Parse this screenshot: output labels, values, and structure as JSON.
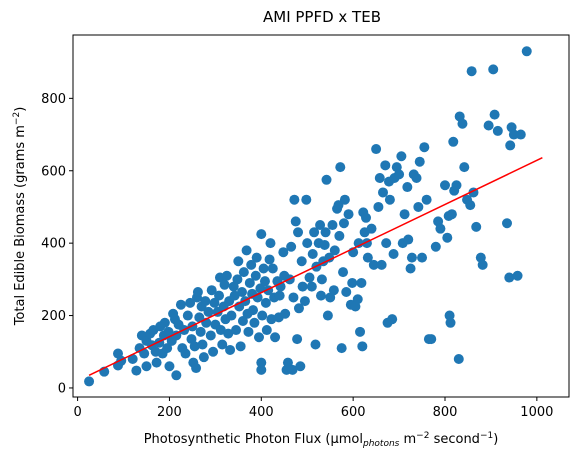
{
  "chart_data": {
    "type": "scatter",
    "title": "AMI PPFD x TEB",
    "xlabel": {
      "prefix": "Photosynthetic Photon Flux (μmol",
      "sub": "photons",
      "mid": " m",
      "sup1": "−2",
      "mid2": " second",
      "sup2": "−1",
      "suffix": ")"
    },
    "ylabel": {
      "prefix": "Total Edible Biomass (grams m",
      "sup": "−2",
      "suffix": ")"
    },
    "xlim": [
      -10,
      1070
    ],
    "ylim": [
      -25,
      975
    ],
    "xticks": [
      0,
      200,
      400,
      600,
      800,
      1000
    ],
    "yticks": [
      0,
      200,
      400,
      600,
      800
    ],
    "grid": false,
    "point_color": "#1f77b4",
    "line_color": "#ff0000",
    "fit_line": {
      "x": [
        25,
        1012
      ],
      "y": [
        35,
        636
      ]
    },
    "points": [
      [
        25,
        18
      ],
      [
        58,
        45
      ],
      [
        88,
        95
      ],
      [
        88,
        62
      ],
      [
        95,
        75
      ],
      [
        120,
        80
      ],
      [
        128,
        48
      ],
      [
        135,
        110
      ],
      [
        140,
        145
      ],
      [
        145,
        95
      ],
      [
        150,
        60
      ],
      [
        150,
        130
      ],
      [
        158,
        150
      ],
      [
        162,
        118
      ],
      [
        165,
        160
      ],
      [
        170,
        100
      ],
      [
        172,
        70
      ],
      [
        178,
        125
      ],
      [
        180,
        170
      ],
      [
        185,
        95
      ],
      [
        188,
        145
      ],
      [
        190,
        180
      ],
      [
        195,
        110
      ],
      [
        198,
        155
      ],
      [
        200,
        60
      ],
      [
        205,
        130
      ],
      [
        208,
        205
      ],
      [
        212,
        190
      ],
      [
        215,
        35
      ],
      [
        215,
        145
      ],
      [
        220,
        175
      ],
      [
        225,
        230
      ],
      [
        228,
        110
      ],
      [
        232,
        160
      ],
      [
        235,
        95
      ],
      [
        240,
        200
      ],
      [
        245,
        235
      ],
      [
        248,
        135
      ],
      [
        250,
        170
      ],
      [
        252,
        70
      ],
      [
        255,
        115
      ],
      [
        258,
        55
      ],
      [
        260,
        250
      ],
      [
        262,
        265
      ],
      [
        265,
        195
      ],
      [
        268,
        155
      ],
      [
        270,
        225
      ],
      [
        272,
        120
      ],
      [
        275,
        85
      ],
      [
        278,
        240
      ],
      [
        280,
        180
      ],
      [
        285,
        210
      ],
      [
        290,
        145
      ],
      [
        292,
        270
      ],
      [
        295,
        100
      ],
      [
        298,
        235
      ],
      [
        300,
        175
      ],
      [
        305,
        210
      ],
      [
        308,
        255
      ],
      [
        310,
        305
      ],
      [
        312,
        160
      ],
      [
        315,
        120
      ],
      [
        318,
        225
      ],
      [
        320,
        285
      ],
      [
        322,
        190
      ],
      [
        325,
        310
      ],
      [
        328,
        150
      ],
      [
        330,
        240
      ],
      [
        332,
        105
      ],
      [
        335,
        200
      ],
      [
        340,
        280
      ],
      [
        342,
        255
      ],
      [
        345,
        160
      ],
      [
        348,
        300
      ],
      [
        350,
        350
      ],
      [
        352,
        225
      ],
      [
        355,
        115
      ],
      [
        358,
        265
      ],
      [
        360,
        185
      ],
      [
        362,
        320
      ],
      [
        365,
        240
      ],
      [
        368,
        380
      ],
      [
        370,
        205
      ],
      [
        372,
        155
      ],
      [
        375,
        290
      ],
      [
        378,
        340
      ],
      [
        380,
        260
      ],
      [
        382,
        215
      ],
      [
        385,
        180
      ],
      [
        388,
        310
      ],
      [
        390,
        360
      ],
      [
        392,
        250
      ],
      [
        395,
        140
      ],
      [
        398,
        275
      ],
      [
        400,
        50
      ],
      [
        400,
        70
      ],
      [
        400,
        425
      ],
      [
        402,
        200
      ],
      [
        405,
        330
      ],
      [
        408,
        295
      ],
      [
        410,
        235
      ],
      [
        412,
        160
      ],
      [
        415,
        270
      ],
      [
        418,
        355
      ],
      [
        420,
        400
      ],
      [
        422,
        190
      ],
      [
        425,
        330
      ],
      [
        428,
        250
      ],
      [
        430,
        140
      ],
      [
        435,
        295
      ],
      [
        438,
        195
      ],
      [
        440,
        255
      ],
      [
        442,
        280
      ],
      [
        448,
        375
      ],
      [
        450,
        310
      ],
      [
        452,
        205
      ],
      [
        455,
        50
      ],
      [
        458,
        70
      ],
      [
        462,
        300
      ],
      [
        465,
        390
      ],
      [
        468,
        50
      ],
      [
        470,
        250
      ],
      [
        472,
        520
      ],
      [
        475,
        460
      ],
      [
        478,
        135
      ],
      [
        480,
        430
      ],
      [
        482,
        220
      ],
      [
        485,
        60
      ],
      [
        488,
        350
      ],
      [
        490,
        280
      ],
      [
        495,
        240
      ],
      [
        498,
        520
      ],
      [
        500,
        400
      ],
      [
        505,
        305
      ],
      [
        510,
        280
      ],
      [
        512,
        370
      ],
      [
        515,
        430
      ],
      [
        518,
        120
      ],
      [
        520,
        335
      ],
      [
        525,
        400
      ],
      [
        528,
        450
      ],
      [
        530,
        255
      ],
      [
        532,
        300
      ],
      [
        535,
        350
      ],
      [
        538,
        395
      ],
      [
        540,
        430
      ],
      [
        542,
        575
      ],
      [
        545,
        200
      ],
      [
        548,
        360
      ],
      [
        550,
        250
      ],
      [
        555,
        450
      ],
      [
        558,
        270
      ],
      [
        560,
        380
      ],
      [
        565,
        495
      ],
      [
        568,
        505
      ],
      [
        570,
        420
      ],
      [
        572,
        610
      ],
      [
        575,
        110
      ],
      [
        578,
        320
      ],
      [
        580,
        455
      ],
      [
        582,
        520
      ],
      [
        585,
        265
      ],
      [
        590,
        480
      ],
      [
        595,
        230
      ],
      [
        598,
        290
      ],
      [
        600,
        375
      ],
      [
        605,
        225
      ],
      [
        610,
        245
      ],
      [
        612,
        400
      ],
      [
        615,
        155
      ],
      [
        618,
        290
      ],
      [
        620,
        115
      ],
      [
        622,
        485
      ],
      [
        625,
        430
      ],
      [
        628,
        470
      ],
      [
        630,
        400
      ],
      [
        632,
        360
      ],
      [
        640,
        440
      ],
      [
        645,
        340
      ],
      [
        650,
        660
      ],
      [
        655,
        500
      ],
      [
        658,
        580
      ],
      [
        662,
        340
      ],
      [
        665,
        540
      ],
      [
        670,
        615
      ],
      [
        672,
        400
      ],
      [
        675,
        180
      ],
      [
        678,
        570
      ],
      [
        680,
        520
      ],
      [
        685,
        190
      ],
      [
        688,
        370
      ],
      [
        690,
        580
      ],
      [
        695,
        610
      ],
      [
        700,
        590
      ],
      [
        705,
        640
      ],
      [
        708,
        400
      ],
      [
        712,
        480
      ],
      [
        718,
        555
      ],
      [
        720,
        410
      ],
      [
        725,
        330
      ],
      [
        728,
        360
      ],
      [
        732,
        590
      ],
      [
        738,
        580
      ],
      [
        742,
        500
      ],
      [
        745,
        625
      ],
      [
        750,
        360
      ],
      [
        755,
        665
      ],
      [
        760,
        520
      ],
      [
        765,
        135
      ],
      [
        770,
        135
      ],
      [
        780,
        390
      ],
      [
        785,
        460
      ],
      [
        790,
        440
      ],
      [
        800,
        560
      ],
      [
        805,
        415
      ],
      [
        808,
        475
      ],
      [
        810,
        200
      ],
      [
        812,
        180
      ],
      [
        815,
        480
      ],
      [
        818,
        680
      ],
      [
        820,
        545
      ],
      [
        825,
        560
      ],
      [
        830,
        80
      ],
      [
        832,
        750
      ],
      [
        838,
        730
      ],
      [
        842,
        610
      ],
      [
        848,
        520
      ],
      [
        855,
        505
      ],
      [
        858,
        875
      ],
      [
        862,
        540
      ],
      [
        868,
        445
      ],
      [
        878,
        360
      ],
      [
        882,
        340
      ],
      [
        895,
        725
      ],
      [
        905,
        880
      ],
      [
        908,
        755
      ],
      [
        915,
        710
      ],
      [
        935,
        455
      ],
      [
        940,
        305
      ],
      [
        942,
        670
      ],
      [
        945,
        720
      ],
      [
        950,
        700
      ],
      [
        958,
        310
      ],
      [
        965,
        700
      ],
      [
        978,
        930
      ]
    ]
  }
}
